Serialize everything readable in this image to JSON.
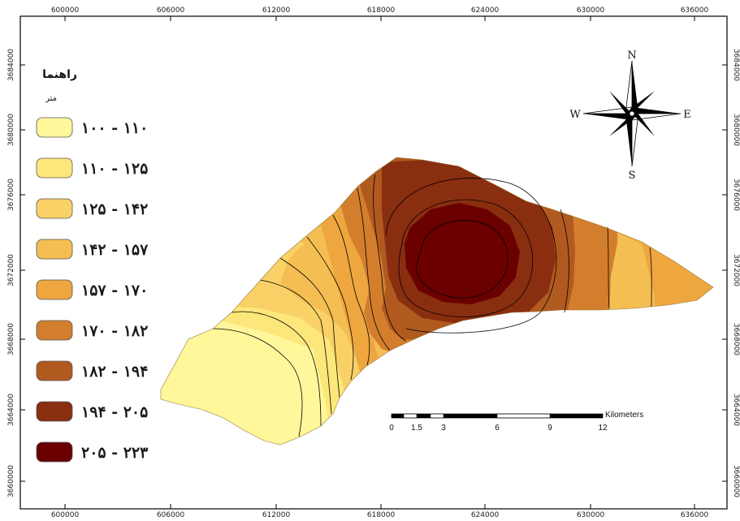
{
  "legend": {
    "title": "راهنما",
    "subtitle": "متر",
    "classes": [
      {
        "label": "۱۰۰ - ۱۱۰",
        "color": "#FFF79A"
      },
      {
        "label": "۱۱۰ - ۱۲۵",
        "color": "#FDE77A"
      },
      {
        "label": "۱۲۵ - ۱۴۲",
        "color": "#F9D166"
      },
      {
        "label": "۱۴۲ - ۱۵۷",
        "color": "#F4BE53"
      },
      {
        "label": "۱۵۷ - ۱۷۰",
        "color": "#EEA63F"
      },
      {
        "label": "۱۷۰ - ۱۸۲",
        "color": "#D27E2C"
      },
      {
        "label": "۱۸۲ - ۱۹۴",
        "color": "#B15A20"
      },
      {
        "label": "۱۹۴ - ۲۰۵",
        "color": "#8A2E10"
      },
      {
        "label": "۲۰۵ - ۲۲۳",
        "color": "#6B0000"
      }
    ]
  },
  "axes": {
    "x_ticks": [
      "600000",
      "606000",
      "612000",
      "618000",
      "624000",
      "630000",
      "636000"
    ],
    "y_ticks": [
      "3684000",
      "3680000",
      "3676000",
      "3672000",
      "3668000",
      "3664000",
      "3660000"
    ]
  },
  "north_arrow": {
    "n": "N",
    "s": "S",
    "e": "E",
    "w": "W"
  },
  "scale_bar": {
    "unit": "Kilometers",
    "labels": [
      "0",
      "1.5",
      "3",
      "6",
      "9",
      "12"
    ]
  },
  "colors": {
    "frame": "#000000",
    "contour": "#000000"
  }
}
